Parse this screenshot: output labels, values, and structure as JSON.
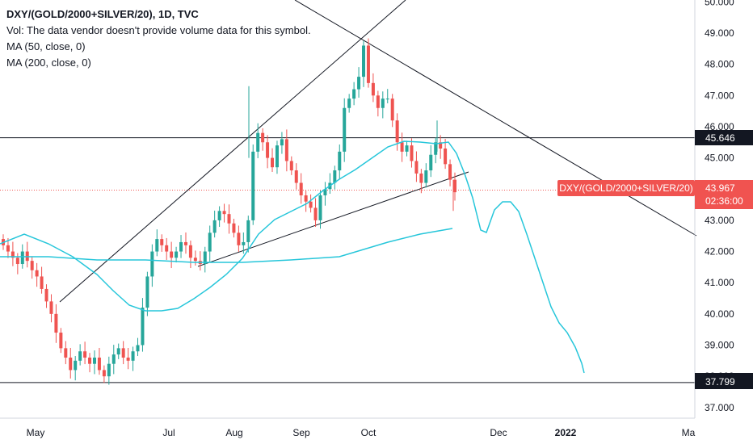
{
  "legend": {
    "title": "DXY/(GOLD/2000+SILVER/20), 1D, TVC",
    "vol": "Vol: The data vendor doesn't provide volume data for this symbol.",
    "ma50": "MA (50, close, 0)",
    "ma200": "MA (200, close, 0)"
  },
  "colors": {
    "up": "#26a69a",
    "down": "#ef5350",
    "ma": "#26c6da",
    "line": "#131722",
    "badge_red": "#f05350",
    "badge_dark": "#131722"
  },
  "chart_data": {
    "type": "candlestick",
    "y_ticks": [
      "37.000",
      "38.000",
      "39.000",
      "40.000",
      "41.000",
      "42.000",
      "43.000",
      "44.000",
      "45.000",
      "46.000",
      "47.000",
      "48.000",
      "49.000",
      "50.000"
    ],
    "x_ticks": [
      "May",
      "Jul",
      "Aug",
      "Sep",
      "Oct",
      "Dec",
      "2022",
      "Ma"
    ],
    "ylim": [
      36.5,
      50.1
    ],
    "price_labels": {
      "symbol_label": "DXY/(GOLD/2000+SILVER/20)",
      "current": "43.967",
      "countdown": "02:36:00",
      "resistance": "45.646",
      "support": "37.799"
    },
    "horizontal_levels": [
      45.646,
      37.799
    ],
    "close_series": [
      42.2,
      42.0,
      41.8,
      41.6,
      42.0,
      41.7,
      41.4,
      41.2,
      40.8,
      40.4,
      40.0,
      39.4,
      38.9,
      38.6,
      38.2,
      38.5,
      38.8,
      38.6,
      38.4,
      38.6,
      38.2,
      38.0,
      38.4,
      38.7,
      38.9,
      38.6,
      38.5,
      38.8,
      39.0,
      40.2,
      41.2,
      42.0,
      42.4,
      42.2,
      42.0,
      41.8,
      42.0,
      42.3,
      42.2,
      41.8,
      41.7,
      41.6,
      42.0,
      42.6,
      43.0,
      43.3,
      43.2,
      42.9,
      42.6,
      42.2,
      42.3,
      43.0,
      45.2,
      45.8,
      45.5,
      45.0,
      44.7,
      45.4,
      45.6,
      44.9,
      44.6,
      44.2,
      43.8,
      43.6,
      43.4,
      43.0,
      43.8,
      44.0,
      44.2,
      44.6,
      45.2,
      46.6,
      46.9,
      47.2,
      47.6,
      48.6,
      47.4,
      47.0,
      46.6,
      46.9,
      46.9,
      46.2,
      45.5,
      45.2,
      45.4,
      44.9,
      44.5,
      44.2,
      44.6,
      45.1,
      45.5,
      45.3,
      44.8,
      44.3,
      43.9
    ]
  }
}
